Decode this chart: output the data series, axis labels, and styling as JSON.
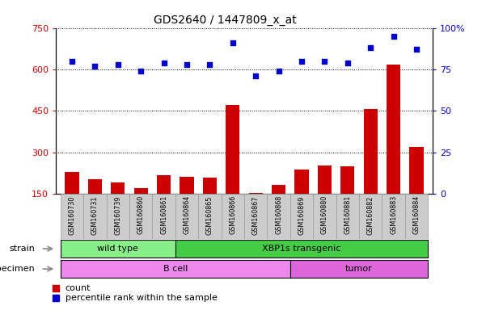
{
  "title": "GDS2640 / 1447809_x_at",
  "samples": [
    "GSM160730",
    "GSM160731",
    "GSM160739",
    "GSM160860",
    "GSM160861",
    "GSM160864",
    "GSM160865",
    "GSM160866",
    "GSM160867",
    "GSM160868",
    "GSM160869",
    "GSM160880",
    "GSM160881",
    "GSM160882",
    "GSM160883",
    "GSM160884"
  ],
  "counts": [
    228,
    202,
    192,
    170,
    218,
    212,
    207,
    472,
    152,
    182,
    238,
    252,
    248,
    458,
    618,
    318
  ],
  "percentile_ranks": [
    80,
    77,
    78,
    74,
    79,
    78,
    78,
    91,
    71,
    74,
    80,
    80,
    79,
    88,
    95,
    87
  ],
  "ylim_left": [
    150,
    750
  ],
  "ylim_right": [
    0,
    100
  ],
  "yticks_left": [
    150,
    300,
    450,
    600,
    750
  ],
  "yticks_right": [
    0,
    25,
    50,
    75,
    100
  ],
  "bar_color": "#cc0000",
  "dot_color": "#0000cc",
  "strain_groups": [
    {
      "label": "wild type",
      "start": 0,
      "end": 5,
      "color": "#88ee88"
    },
    {
      "label": "XBP1s transgenic",
      "start": 5,
      "end": 16,
      "color": "#44cc44"
    }
  ],
  "specimen_groups": [
    {
      "label": "B cell",
      "start": 0,
      "end": 10,
      "color": "#ee88ee"
    },
    {
      "label": "tumor",
      "start": 10,
      "end": 16,
      "color": "#dd66dd"
    }
  ],
  "strain_label": "strain",
  "specimen_label": "specimen",
  "legend_count_label": "count",
  "legend_pct_label": "percentile rank within the sample",
  "xtick_bg_color": "#cccccc",
  "label_arrow_color": "#888888"
}
